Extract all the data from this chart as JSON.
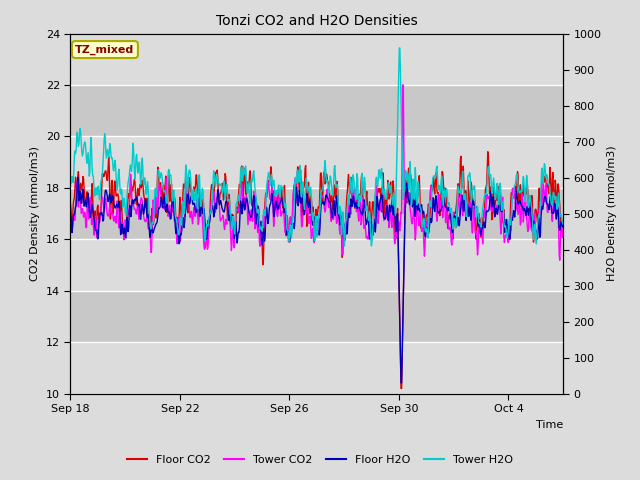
{
  "title": "Tonzi CO2 and H2O Densities",
  "xlabel": "Time",
  "ylabel_left": "CO2 Density (mmol/m3)",
  "ylabel_right": "H2O Density (mmol/m3)",
  "ylim_left": [
    10,
    24
  ],
  "ylim_right": [
    0,
    1000
  ],
  "yticks_left": [
    10,
    12,
    14,
    16,
    18,
    20,
    22,
    24
  ],
  "yticks_right": [
    0,
    100,
    200,
    300,
    400,
    500,
    600,
    700,
    800,
    900,
    1000
  ],
  "bg_light": "#dcdcdc",
  "bg_dark": "#c8c8c8",
  "colors": {
    "floor_co2": "#dd0000",
    "tower_co2": "#ff00ff",
    "floor_h2o": "#0000bb",
    "tower_h2o": "#00cccc"
  },
  "legend_labels": [
    "Floor CO2",
    "Tower CO2",
    "Floor H2O",
    "Tower H2O"
  ],
  "annotation_text": "TZ_mixed",
  "annotation_color": "#880000",
  "annotation_bg": "#ffffcc",
  "annotation_border": "#aaaa00",
  "n_days": 18,
  "seed": 42,
  "xtick_positions": [
    0,
    4,
    8,
    12,
    16
  ],
  "xtick_labels": [
    "Sep 18",
    "Sep 22",
    "Sep 26",
    "Sep 30",
    "Oct 4"
  ],
  "figsize": [
    6.4,
    4.8
  ],
  "dpi": 100
}
